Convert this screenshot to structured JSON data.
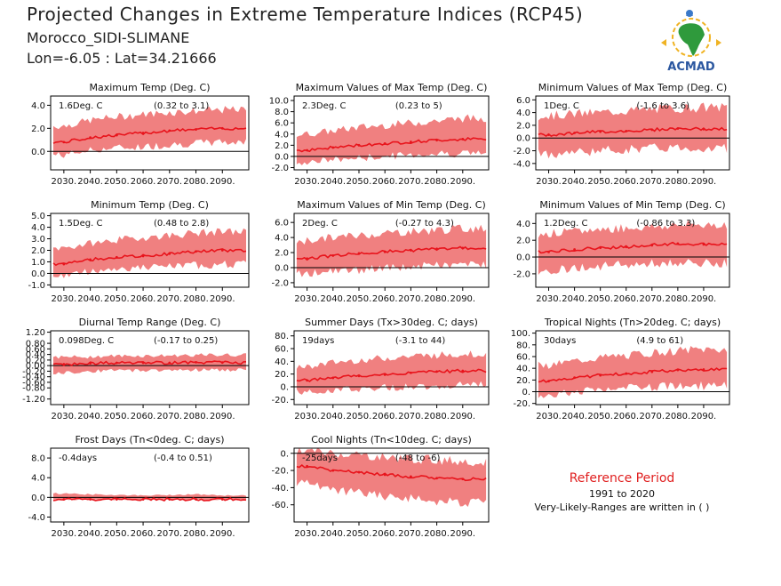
{
  "header": {
    "title": "Projected Changes in Extreme Temperature Indices (RCP45)",
    "location": "Morocco_SIDI-SLIMANE",
    "coords": "Lon=-6.05 : Lat=34.21666"
  },
  "logo": {
    "text": "ACMAD",
    "icon": "africa-map-logo"
  },
  "reference": {
    "title": "Reference Period",
    "years": "1991 to 2020",
    "note": "Very-Likely-Ranges are written in ( )"
  },
  "colors": {
    "line": "#e8141c",
    "band": "#f08080",
    "text": "#111111"
  },
  "chart_data": [
    {
      "type": "area",
      "title": "Maximum Temp (Deg. C)",
      "summary": "1.6Deg. C",
      "range": "(0.32 to 3.1)",
      "x": [
        2030,
        2040,
        2050,
        2060,
        2070,
        2080,
        2090
      ],
      "xlim": [
        2025,
        2100
      ],
      "ylim": [
        -1.6,
        4.8
      ],
      "yticks": [
        0,
        2,
        4
      ],
      "ytick_labels": [
        "0.0",
        "2.0",
        "4.0"
      ],
      "xtick_labels": [
        "2030.",
        "2040.",
        "2050.",
        "2060.",
        "2070.",
        "2080.",
        "2090."
      ],
      "mean": [
        0.8,
        1.2,
        1.4,
        1.6,
        1.8,
        1.9,
        2.0
      ],
      "low": [
        -0.3,
        0.1,
        0.3,
        0.4,
        0.6,
        0.7,
        0.8
      ],
      "high": [
        2.2,
        2.7,
        3.0,
        3.2,
        3.4,
        3.5,
        3.6
      ]
    },
    {
      "type": "area",
      "title": "Maximum Values of Max Temp (Deg. C)",
      "summary": "2.3Deg. C",
      "range": "(0.23 to 5)",
      "x": [
        2030,
        2040,
        2050,
        2060,
        2070,
        2080,
        2090
      ],
      "xlim": [
        2025,
        2100
      ],
      "ylim": [
        -2.4,
        10.8
      ],
      "yticks": [
        -2,
        0,
        2,
        4,
        6,
        8,
        10
      ],
      "ytick_labels": [
        "-2.0",
        "0.0",
        "2.0",
        "4.0",
        "6.0",
        "8.0",
        "10.0"
      ],
      "xtick_labels": [
        "2030.",
        "2040.",
        "2050.",
        "2060.",
        "2070.",
        "2080.",
        "2090."
      ],
      "mean": [
        1.1,
        1.6,
        2.0,
        2.3,
        2.6,
        2.9,
        3.1
      ],
      "low": [
        -1.0,
        -0.6,
        -0.3,
        0.0,
        0.3,
        0.5,
        0.6
      ],
      "high": [
        4.0,
        4.6,
        5.2,
        5.6,
        6.0,
        6.4,
        6.8
      ]
    },
    {
      "type": "area",
      "title": "Minimum Values of Max Temp (Deg. C)",
      "summary": "1Deg. C",
      "range": "(-1.6 to 3.6)",
      "x": [
        2030,
        2040,
        2050,
        2060,
        2070,
        2080,
        2090
      ],
      "xlim": [
        2025,
        2100
      ],
      "ylim": [
        -5,
        6.6
      ],
      "yticks": [
        -4,
        -2,
        0,
        2,
        4,
        6
      ],
      "ytick_labels": [
        "-4.0",
        "-2.0",
        "0.0",
        "2.0",
        "4.0",
        "6.0"
      ],
      "xtick_labels": [
        "2030.",
        "2040.",
        "2050.",
        "2060.",
        "2070.",
        "2080.",
        "2090."
      ],
      "mean": [
        0.5,
        0.8,
        1.0,
        1.1,
        1.3,
        1.5,
        1.4
      ],
      "low": [
        -2.5,
        -2.2,
        -2.0,
        -1.8,
        -1.6,
        -1.5,
        -1.6
      ],
      "high": [
        3.5,
        3.8,
        4.0,
        4.3,
        4.5,
        4.7,
        4.8
      ]
    },
    {
      "type": "area",
      "title": "Minimum Temp (Deg. C)",
      "summary": "1.5Deg. C",
      "range": "(0.48 to 2.8)",
      "x": [
        2030,
        2040,
        2050,
        2060,
        2070,
        2080,
        2090
      ],
      "xlim": [
        2025,
        2100
      ],
      "ylim": [
        -1.2,
        5.2
      ],
      "yticks": [
        -1,
        0,
        1,
        2,
        3,
        4,
        5
      ],
      "ytick_labels": [
        "-1.0",
        "0.0",
        "1.0",
        "2.0",
        "3.0",
        "4.0",
        "5.0"
      ],
      "xtick_labels": [
        "2030.",
        "2040.",
        "2050.",
        "2060.",
        "2070.",
        "2080.",
        "2090."
      ],
      "mean": [
        0.8,
        1.2,
        1.4,
        1.5,
        1.7,
        1.9,
        2.0
      ],
      "low": [
        -0.2,
        0.2,
        0.4,
        0.5,
        0.6,
        0.7,
        0.8
      ],
      "high": [
        2.2,
        2.6,
        2.9,
        3.1,
        3.3,
        3.5,
        3.6
      ]
    },
    {
      "type": "area",
      "title": "Maximum Values of Min Temp (Deg. C)",
      "summary": "2Deg. C",
      "range": "(-0.27 to 4.3)",
      "x": [
        2030,
        2040,
        2050,
        2060,
        2070,
        2080,
        2090
      ],
      "xlim": [
        2025,
        2100
      ],
      "ylim": [
        -2.6,
        7.2
      ],
      "yticks": [
        -2,
        0,
        2,
        4,
        6
      ],
      "ytick_labels": [
        "-2.0",
        "0.0",
        "2.0",
        "4.0",
        "6.0"
      ],
      "xtick_labels": [
        "2030.",
        "2040.",
        "2050.",
        "2060.",
        "2070.",
        "2080.",
        "2090."
      ],
      "mean": [
        1.2,
        1.6,
        1.9,
        2.1,
        2.3,
        2.5,
        2.6
      ],
      "low": [
        -0.8,
        -0.5,
        -0.3,
        -0.1,
        0.1,
        0.3,
        0.4
      ],
      "high": [
        3.6,
        4.0,
        4.3,
        4.6,
        4.8,
        5.0,
        5.2
      ]
    },
    {
      "type": "area",
      "title": "Minimum Values of Min Temp (Deg. C)",
      "summary": "1.2Deg. C",
      "range": "(-0.86 to 3.3)",
      "x": [
        2030,
        2040,
        2050,
        2060,
        2070,
        2080,
        2090
      ],
      "xlim": [
        2025,
        2100
      ],
      "ylim": [
        -3.6,
        5.2
      ],
      "yticks": [
        -2,
        0,
        2,
        4
      ],
      "ytick_labels": [
        "-2.0",
        "0.0",
        "2.0",
        "4.0"
      ],
      "xtick_labels": [
        "2030.",
        "2040.",
        "2050.",
        "2060.",
        "2070.",
        "2080.",
        "2090."
      ],
      "mean": [
        0.6,
        0.9,
        1.1,
        1.2,
        1.4,
        1.6,
        1.5
      ],
      "low": [
        -1.6,
        -1.3,
        -1.1,
        -0.9,
        -0.8,
        -0.7,
        -0.8
      ],
      "high": [
        2.8,
        3.0,
        3.3,
        3.5,
        3.6,
        3.8,
        3.9
      ]
    },
    {
      "type": "area",
      "title": "Diurnal Temp Range (Deg. C)",
      "summary": "0.098Deg. C",
      "range": "(-0.17 to 0.25)",
      "x": [
        2030,
        2040,
        2050,
        2060,
        2070,
        2080,
        2090
      ],
      "xlim": [
        2025,
        2100
      ],
      "ylim": [
        -1.4,
        1.25
      ],
      "yticks": [
        -1.2,
        -0.8,
        -0.6,
        -0.4,
        -0.2,
        0,
        0.2,
        0.4,
        0.6,
        0.8,
        1.2
      ],
      "ytick_labels": [
        "-1.20",
        "-0.80",
        "-0.60",
        "-0.40",
        "-0.20",
        "0.00",
        "0.20",
        "0.40",
        "0.60",
        "0.80",
        "1.20"
      ],
      "xtick_labels": [
        "2030.",
        "2040.",
        "2050.",
        "2060.",
        "2070.",
        "2080.",
        "2090."
      ],
      "mean": [
        0.05,
        0.08,
        0.1,
        0.1,
        0.1,
        0.12,
        0.11
      ],
      "low": [
        -0.25,
        -0.2,
        -0.18,
        -0.17,
        -0.16,
        -0.15,
        -0.16
      ],
      "high": [
        0.3,
        0.32,
        0.35,
        0.35,
        0.36,
        0.38,
        0.38
      ]
    },
    {
      "type": "area",
      "title": "Summer Days (Tx>30deg. C; days)",
      "summary": "19days",
      "range": "(-3.1 to 44)",
      "x": [
        2030,
        2040,
        2050,
        2060,
        2070,
        2080,
        2090
      ],
      "xlim": [
        2025,
        2100
      ],
      "ylim": [
        -28,
        88
      ],
      "yticks": [
        -20,
        0,
        20,
        40,
        60,
        80
      ],
      "ytick_labels": [
        "-20.",
        "0.",
        "20.",
        "40.",
        "60.",
        "80."
      ],
      "xtick_labels": [
        "2030.",
        "2040.",
        "2050.",
        "2060.",
        "2070.",
        "2080.",
        "2090."
      ],
      "mean": [
        10,
        14,
        17,
        19,
        22,
        24,
        25
      ],
      "low": [
        -8,
        -5,
        -3,
        -1,
        0,
        2,
        3
      ],
      "high": [
        32,
        38,
        42,
        45,
        48,
        50,
        52
      ]
    },
    {
      "type": "area",
      "title": "Tropical Nights (Tn>20deg. C; days)",
      "summary": "30days",
      "range": "(4.9 to 61)",
      "x": [
        2030,
        2040,
        2050,
        2060,
        2070,
        2080,
        2090
      ],
      "xlim": [
        2025,
        2100
      ],
      "ylim": [
        -22,
        104
      ],
      "yticks": [
        -20,
        0,
        20,
        40,
        60,
        80,
        100
      ],
      "ytick_labels": [
        "-20.",
        "0.",
        "20.",
        "40.",
        "60.",
        "80.",
        "100."
      ],
      "xtick_labels": [
        "2030.",
        "2040.",
        "2050.",
        "2060.",
        "2070.",
        "2080.",
        "2090."
      ],
      "mean": [
        18,
        24,
        28,
        31,
        34,
        37,
        38
      ],
      "low": [
        -5,
        0,
        3,
        6,
        8,
        10,
        10
      ],
      "high": [
        45,
        52,
        58,
        62,
        66,
        70,
        72
      ]
    },
    {
      "type": "area",
      "title": "Frost Days (Tn<0deg. C; days)",
      "summary": "-0.4days",
      "range": "(-0.4 to 0.51)",
      "x": [
        2030,
        2040,
        2050,
        2060,
        2070,
        2080,
        2090
      ],
      "xlim": [
        2025,
        2100
      ],
      "ylim": [
        -5,
        10
      ],
      "yticks": [
        -4,
        0,
        4,
        8
      ],
      "ytick_labels": [
        "-4.0",
        "0.0",
        "4.0",
        "8.0"
      ],
      "xtick_labels": [
        "2030.",
        "2040.",
        "2050.",
        "2060.",
        "2070.",
        "2080.",
        "2090."
      ],
      "mean": [
        -0.4,
        -0.4,
        -0.4,
        -0.4,
        -0.4,
        -0.4,
        -0.4
      ],
      "low": [
        -0.5,
        -0.5,
        -0.5,
        -0.5,
        -0.5,
        -0.5,
        -0.5
      ],
      "high": [
        0.8,
        0.6,
        0.5,
        0.4,
        0.5,
        0.6,
        0.4
      ]
    },
    {
      "type": "area",
      "title": "Cool Nights (Tn<10deg. C; days)",
      "summary": "-25days",
      "range": "(-48 to -6)",
      "x": [
        2030,
        2040,
        2050,
        2060,
        2070,
        2080,
        2090
      ],
      "xlim": [
        2025,
        2100
      ],
      "ylim": [
        -80,
        6
      ],
      "yticks": [
        -60,
        -40,
        -20,
        0
      ],
      "ytick_labels": [
        "-60.",
        "-40.",
        "-20.",
        "0."
      ],
      "xtick_labels": [
        "2030.",
        "2040.",
        "2050.",
        "2060.",
        "2070.",
        "2080.",
        "2090."
      ],
      "mean": [
        -15,
        -20,
        -22,
        -25,
        -27,
        -29,
        -30
      ],
      "low": [
        -35,
        -42,
        -46,
        -50,
        -52,
        -55,
        -57
      ],
      "high": [
        3,
        0,
        -2,
        -5,
        -6,
        -8,
        -9
      ]
    }
  ]
}
